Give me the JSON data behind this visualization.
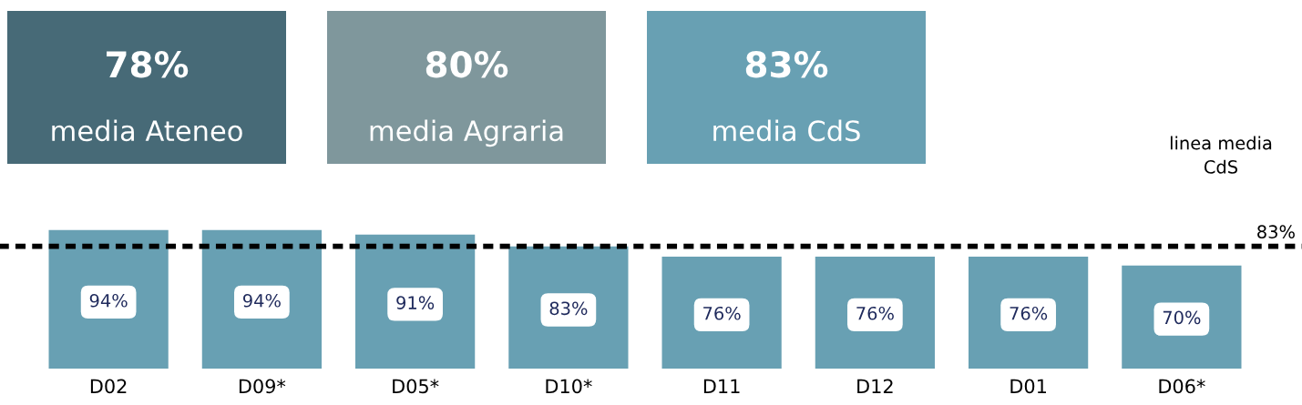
{
  "chart_data": [
    {
      "type": "other",
      "annotations": [
        "78%",
        "media Ateneo",
        "80%",
        "media Agraria",
        "83%",
        "media CdS"
      ],
      "colors": [
        "#476a77",
        "#7f979c",
        "#68a0b3"
      ]
    },
    {
      "type": "bar",
      "categories": [
        "D02",
        "D09*",
        "D05*",
        "D10*",
        "D11",
        "D12",
        "D01",
        "D06*"
      ],
      "values": [
        94,
        94,
        91,
        83,
        76,
        76,
        76,
        70
      ],
      "color": "#68a0b3",
      "value_labels": [
        "94%",
        "94%",
        "91%",
        "83%",
        "76%",
        "76%",
        "76%",
        "70%"
      ],
      "ref_lines": [
        {
          "axis": "y",
          "value": 83,
          "label": "83%",
          "color": "#000000",
          "line_style": "dashed"
        }
      ],
      "annotations": [
        "linea media CdS"
      ]
    }
  ]
}
